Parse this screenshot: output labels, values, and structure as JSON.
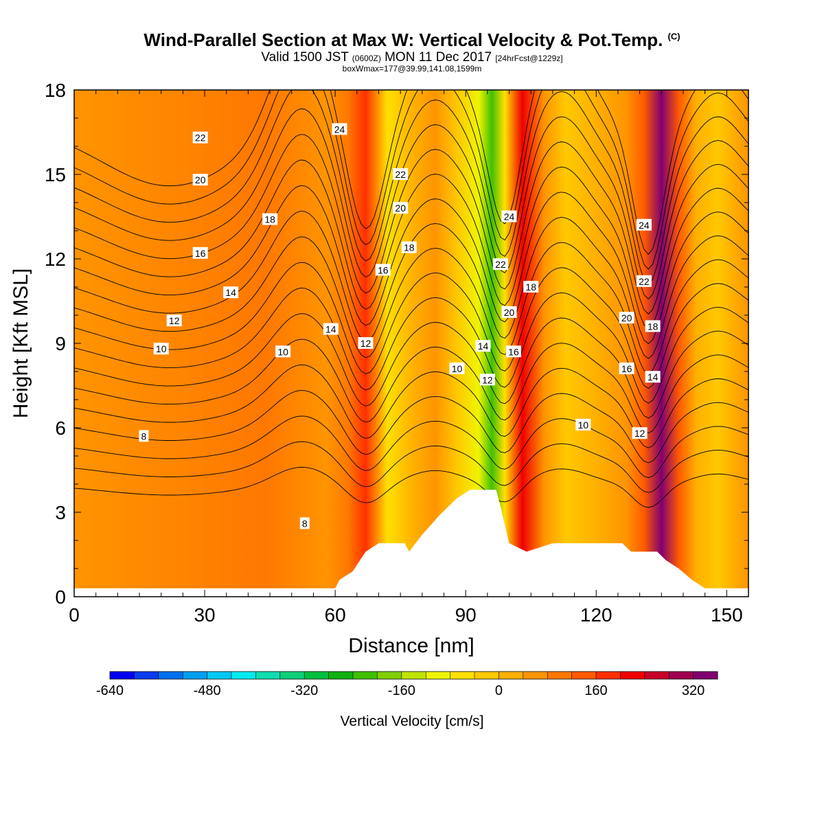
{
  "header": {
    "title": "Wind-Parallel Section at Max W: Vertical Velocity & Pot.Temp.",
    "title_suffix": "(C)",
    "subtitle_pre": "Valid 1500 JST",
    "subtitle_small1": "(0600Z)",
    "subtitle_mid": "MON 11 Dec 2017",
    "subtitle_small2": "[24hrFcst@1229z]",
    "info": "boxWmax=177@39.99,141.08,1599m"
  },
  "chart_data": {
    "type": "heatmap",
    "xlabel": "Distance [nm]",
    "ylabel": "Height [Kft MSL]",
    "xlim": [
      0,
      155
    ],
    "ylim": [
      0,
      18
    ],
    "xticks": [
      0,
      30,
      60,
      90,
      120,
      150
    ],
    "yticks": [
      0,
      3,
      6,
      9,
      12,
      15,
      18
    ],
    "colorbar": {
      "label": "Vertical Velocity [cm/s]",
      "min": -640,
      "max": 360,
      "step": 40,
      "tick_values": [
        -640,
        -480,
        -320,
        -160,
        0,
        160,
        320
      ],
      "tick_labels": [
        "-640",
        "-480",
        "-320",
        "-160",
        "0",
        "160",
        "320"
      ],
      "colors": [
        "#0000ee",
        "#0a3cf0",
        "#0070ee",
        "#00a0f0",
        "#00c8f5",
        "#00eaf0",
        "#10dcb0",
        "#0ad078",
        "#00c040",
        "#10b010",
        "#40c000",
        "#80d000",
        "#c0e400",
        "#f0f400",
        "#ffe000",
        "#ffc800",
        "#ffb000",
        "#ff9400",
        "#ff7800",
        "#ff5a00",
        "#ff3000",
        "#f00000",
        "#c80028",
        "#a00050",
        "#800070"
      ]
    },
    "velocity_columns": [
      {
        "x": 0,
        "w": 40
      },
      {
        "x": 44,
        "w": 80
      },
      {
        "x": 58,
        "w": 40
      },
      {
        "x": 63,
        "w": 80
      },
      {
        "x": 67,
        "w": 160
      },
      {
        "x": 72,
        "w": -80
      },
      {
        "x": 78,
        "w": 20
      },
      {
        "x": 83,
        "w": 60
      },
      {
        "x": 88,
        "w": -40
      },
      {
        "x": 93,
        "w": -120
      },
      {
        "x": 96,
        "w": -220
      },
      {
        "x": 99,
        "w": -60
      },
      {
        "x": 103,
        "w": 200
      },
      {
        "x": 108,
        "w": 40
      },
      {
        "x": 113,
        "w": -40
      },
      {
        "x": 120,
        "w": 20
      },
      {
        "x": 127,
        "w": 60
      },
      {
        "x": 131,
        "w": 140
      },
      {
        "x": 135,
        "w": 340
      },
      {
        "x": 139,
        "w": 140
      },
      {
        "x": 143,
        "w": 20
      },
      {
        "x": 148,
        "w": -40
      },
      {
        "x": 155,
        "w": 60
      }
    ],
    "terrain": [
      [
        0,
        0.3
      ],
      [
        60,
        0.3
      ],
      [
        61,
        0.6
      ],
      [
        64,
        0.9
      ],
      [
        67,
        1.6
      ],
      [
        70,
        1.9
      ],
      [
        76,
        1.9
      ],
      [
        77,
        1.6
      ],
      [
        80,
        2.2
      ],
      [
        84,
        2.9
      ],
      [
        88,
        3.5
      ],
      [
        91,
        3.8
      ],
      [
        97,
        3.8
      ],
      [
        98,
        3.2
      ],
      [
        100,
        1.9
      ],
      [
        104,
        1.6
      ],
      [
        110,
        1.9
      ],
      [
        126,
        1.9
      ],
      [
        128,
        1.6
      ],
      [
        134,
        1.6
      ],
      [
        136,
        1.3
      ],
      [
        139,
        1.0
      ],
      [
        142,
        0.6
      ],
      [
        145,
        0.3
      ],
      [
        155,
        0.3
      ]
    ],
    "theta_contours": {
      "levels": [
        8,
        9,
        10,
        11,
        12,
        13,
        14,
        15,
        16,
        17,
        18,
        19,
        20,
        21,
        22,
        23,
        24,
        25
      ],
      "labels": [
        {
          "x": 16,
          "y": 5.7,
          "text": "8"
        },
        {
          "x": 53,
          "y": 2.6,
          "text": "8"
        },
        {
          "x": 20,
          "y": 8.8,
          "text": "10"
        },
        {
          "x": 48,
          "y": 8.7,
          "text": "10"
        },
        {
          "x": 88,
          "y": 8.1,
          "text": "10"
        },
        {
          "x": 117,
          "y": 6.1,
          "text": "10"
        },
        {
          "x": 23,
          "y": 9.8,
          "text": "12"
        },
        {
          "x": 67,
          "y": 9.0,
          "text": "12"
        },
        {
          "x": 95,
          "y": 7.7,
          "text": "12"
        },
        {
          "x": 130,
          "y": 5.8,
          "text": "12"
        },
        {
          "x": 36,
          "y": 10.8,
          "text": "14"
        },
        {
          "x": 59,
          "y": 9.5,
          "text": "14"
        },
        {
          "x": 94,
          "y": 8.9,
          "text": "14"
        },
        {
          "x": 133,
          "y": 7.8,
          "text": "14"
        },
        {
          "x": 29,
          "y": 12.2,
          "text": "16"
        },
        {
          "x": 71,
          "y": 11.6,
          "text": "16"
        },
        {
          "x": 101,
          "y": 8.7,
          "text": "16"
        },
        {
          "x": 127,
          "y": 8.1,
          "text": "16"
        },
        {
          "x": 45,
          "y": 13.4,
          "text": "18"
        },
        {
          "x": 77,
          "y": 12.4,
          "text": "18"
        },
        {
          "x": 105,
          "y": 11.0,
          "text": "18"
        },
        {
          "x": 133,
          "y": 9.6,
          "text": "18"
        },
        {
          "x": 29,
          "y": 14.8,
          "text": "20"
        },
        {
          "x": 75,
          "y": 13.8,
          "text": "20"
        },
        {
          "x": 100,
          "y": 10.1,
          "text": "20"
        },
        {
          "x": 127,
          "y": 9.9,
          "text": "20"
        },
        {
          "x": 29,
          "y": 16.3,
          "text": "22"
        },
        {
          "x": 75,
          "y": 15.0,
          "text": "22"
        },
        {
          "x": 98,
          "y": 11.8,
          "text": "22"
        },
        {
          "x": 131,
          "y": 11.2,
          "text": "22"
        },
        {
          "x": 61,
          "y": 16.6,
          "text": "24"
        },
        {
          "x": 100,
          "y": 13.5,
          "text": "24"
        },
        {
          "x": 131,
          "y": 13.2,
          "text": "24"
        }
      ]
    }
  }
}
